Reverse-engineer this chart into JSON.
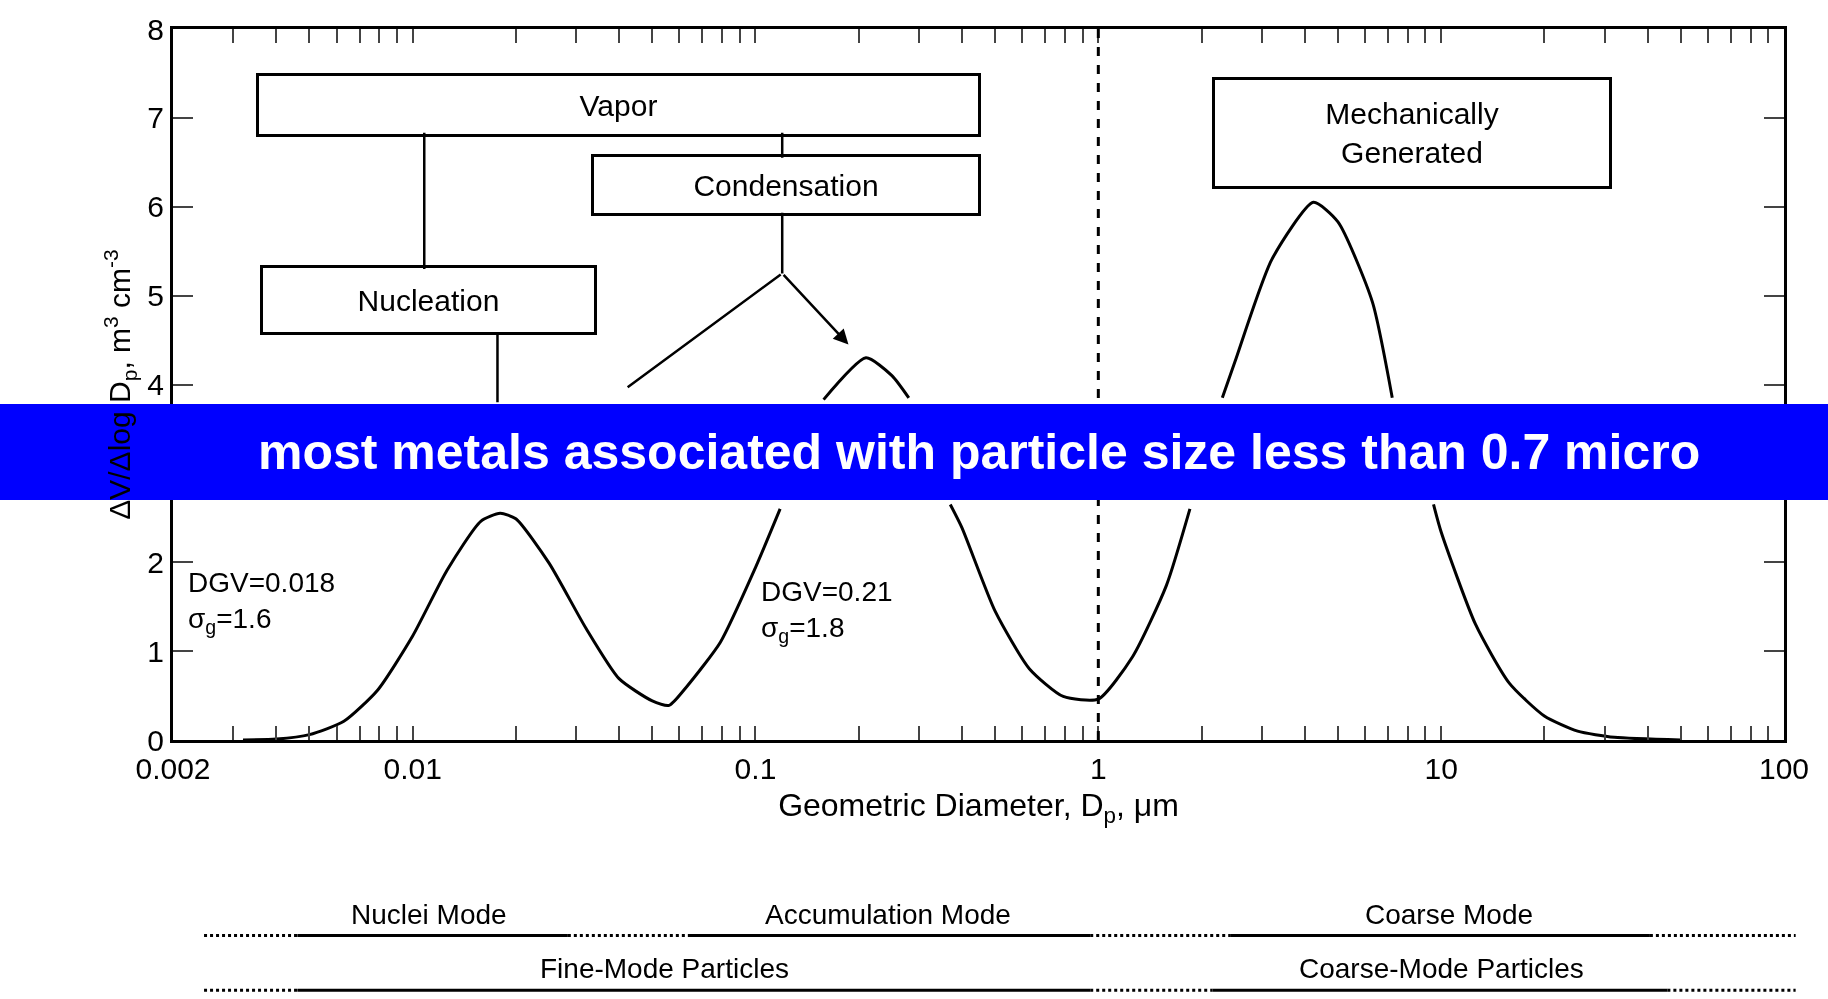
{
  "chart_data": {
    "type": "line",
    "xlabel": "Geometric Diameter, D$_{p}$, μm",
    "ylabel": "ΔV/Δlog D$_{p}$, m$^{3}$ cm$^{-3}$",
    "x": [
      0.0032,
      0.004,
      0.005,
      0.0063,
      0.0079,
      0.01,
      0.0126,
      0.0158,
      0.018,
      0.02,
      0.025,
      0.032,
      0.04,
      0.05,
      0.056,
      0.063,
      0.079,
      0.1,
      0.118,
      0.13,
      0.158,
      0.21,
      0.25,
      0.28,
      0.32,
      0.37,
      0.4,
      0.5,
      0.63,
      0.79,
      1,
      1.26,
      1.58,
      1.85,
      2.1,
      2.3,
      2.5,
      3.2,
      4.24,
      5,
      6.3,
      7.2,
      8,
      9.5,
      10,
      12.6,
      15.8,
      20,
      25,
      32,
      50
    ],
    "series": [
      {
        "color": "#000000",
        "values": [
          0,
          0.01,
          0.06,
          0.21,
          0.56,
          1.17,
          1.91,
          2.46,
          2.55,
          2.49,
          1.99,
          1.26,
          0.69,
          0.44,
          0.39,
          0.6,
          1.1,
          1.94,
          2.6,
          null,
          3.83,
          4.3,
          4.1,
          3.85,
          null,
          2.65,
          2.39,
          1.45,
          0.8,
          0.49,
          0.46,
          0.94,
          1.74,
          2.6,
          null,
          3.85,
          4.25,
          5.4,
          6.05,
          5.83,
          4.93,
          3.85,
          null,
          2.65,
          2.34,
          1.3,
          0.64,
          0.27,
          0.1,
          0.03,
          0
        ]
      }
    ],
    "log": "x",
    "xlim": [
      0.002,
      100
    ],
    "ylim": [
      0,
      8
    ],
    "xticks": [
      0.002,
      {
        "value": 0.003,
        "label": null
      },
      {
        "value": 0.004,
        "label": null
      },
      {
        "value": 0.005,
        "label": null
      },
      {
        "value": 0.006,
        "label": null
      },
      {
        "value": 0.007,
        "label": null
      },
      {
        "value": 0.008,
        "label": null
      },
      {
        "value": 0.009,
        "label": null
      },
      0.01,
      {
        "value": 0.02,
        "label": null
      },
      {
        "value": 0.03,
        "label": null
      },
      {
        "value": 0.04,
        "label": null
      },
      {
        "value": 0.05,
        "label": null
      },
      {
        "value": 0.06,
        "label": null
      },
      {
        "value": 0.07,
        "label": null
      },
      {
        "value": 0.08,
        "label": null
      },
      {
        "value": 0.09,
        "label": null
      },
      0.1,
      {
        "value": 0.2,
        "label": null
      },
      {
        "value": 0.3,
        "label": null
      },
      {
        "value": 0.4,
        "label": null
      },
      {
        "value": 0.5,
        "label": null
      },
      {
        "value": 0.6,
        "label": null
      },
      {
        "value": 0.7,
        "label": null
      },
      {
        "value": 0.8,
        "label": null
      },
      {
        "value": 0.9,
        "label": null
      },
      1,
      {
        "value": 2,
        "label": null
      },
      {
        "value": 3,
        "label": null
      },
      {
        "value": 4,
        "label": null
      },
      {
        "value": 5,
        "label": null
      },
      {
        "value": 6,
        "label": null
      },
      {
        "value": 7,
        "label": null
      },
      {
        "value": 8,
        "label": null
      },
      {
        "value": 9,
        "label": null
      },
      10,
      {
        "value": 20,
        "label": null
      },
      {
        "value": 30,
        "label": null
      },
      {
        "value": 40,
        "label": null
      },
      {
        "value": 50,
        "label": null
      },
      {
        "value": 60,
        "label": null
      },
      {
        "value": 70,
        "label": null
      },
      {
        "value": 80,
        "label": null
      },
      {
        "value": 90,
        "label": null
      },
      100
    ],
    "yticks": [
      0,
      1,
      2,
      4,
      5,
      6,
      7,
      8
    ],
    "marker": "none",
    "line_style": "solid",
    "ref_lines": [
      {
        "axis": "x",
        "value": 1,
        "line_style": "dashed",
        "color": "#000000"
      }
    ],
    "annotations": [
      "Vapor",
      "Condensation",
      "Nucleation",
      "Mechanically\nGenerated",
      "DGV=0.018\nσ$_{g}$=1.6",
      "DGV=0.21\nσ$_{g}$=1.8",
      "Nuclei Mode",
      "Accumulation Mode",
      "Coarse Mode",
      "Fine-Mode Particles",
      "Coarse-Mode Particles",
      "most metals associated with particle size less than 0.7 micro"
    ]
  }
}
